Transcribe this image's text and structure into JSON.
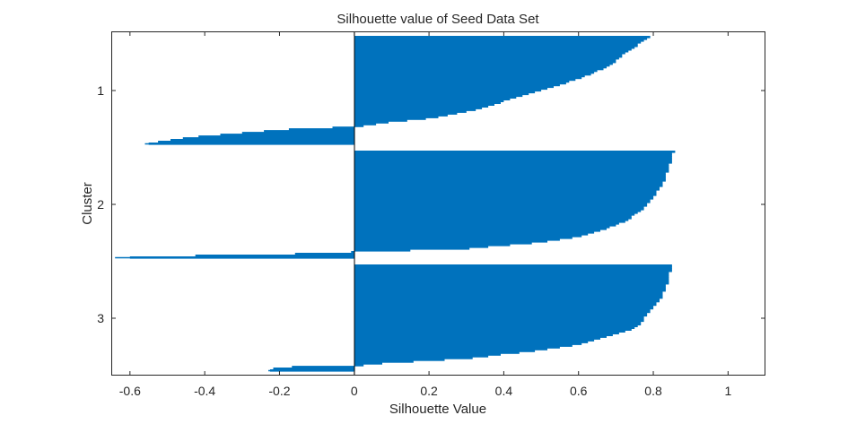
{
  "chart_data": {
    "type": "bar",
    "orientation": "horizontal",
    "title": "Silhouette value of Seed Data Set",
    "xlabel": "Silhouette Value",
    "ylabel": "Cluster",
    "xlim": [
      -0.65,
      1.1
    ],
    "xticks": [
      -0.6,
      -0.4,
      -0.2,
      0,
      0.2,
      0.4,
      0.6,
      0.8,
      1
    ],
    "xtick_labels": [
      "-0.6",
      "-0.4",
      "-0.2",
      "0",
      "0.2",
      "0.4",
      "0.6",
      "0.8",
      "1"
    ],
    "yticks": [
      1,
      2,
      3
    ],
    "ytick_labels": [
      "1",
      "2",
      "3"
    ],
    "grid": false,
    "bar_color": "#0072BD",
    "clusters": [
      {
        "label": "1",
        "max_value": 0.8,
        "min_value": -0.56,
        "profile": [
          [
            0,
            0.8
          ],
          [
            0.03,
            0.78
          ],
          [
            0.08,
            0.76
          ],
          [
            0.14,
            0.73
          ],
          [
            0.2,
            0.71
          ],
          [
            0.26,
            0.69
          ],
          [
            0.31,
            0.66
          ],
          [
            0.38,
            0.61
          ],
          [
            0.45,
            0.55
          ],
          [
            0.5,
            0.5
          ],
          [
            0.55,
            0.45
          ],
          [
            0.6,
            0.4
          ],
          [
            0.66,
            0.35
          ],
          [
            0.7,
            0.3
          ],
          [
            0.73,
            0.25
          ],
          [
            0.76,
            0.2
          ],
          [
            0.79,
            0.1
          ],
          [
            0.84,
            0.0
          ],
          [
            0.85,
            -0.13
          ],
          [
            0.88,
            -0.25
          ],
          [
            0.92,
            -0.4
          ],
          [
            0.97,
            -0.52
          ],
          [
            1.0,
            -0.56
          ]
        ]
      },
      {
        "label": "2",
        "max_value": 0.855,
        "min_value": -0.64,
        "profile": [
          [
            0,
            0.855
          ],
          [
            0.08,
            0.85
          ],
          [
            0.18,
            0.84
          ],
          [
            0.28,
            0.83
          ],
          [
            0.38,
            0.81
          ],
          [
            0.48,
            0.79
          ],
          [
            0.55,
            0.77
          ],
          [
            0.62,
            0.74
          ],
          [
            0.68,
            0.71
          ],
          [
            0.74,
            0.66
          ],
          [
            0.8,
            0.6
          ],
          [
            0.85,
            0.5
          ],
          [
            0.88,
            0.4
          ],
          [
            0.91,
            0.3
          ],
          [
            0.93,
            0.1
          ],
          [
            0.94,
            0.0
          ],
          [
            0.95,
            -0.05
          ],
          [
            0.97,
            -0.3
          ],
          [
            0.98,
            -0.55
          ],
          [
            1.0,
            -0.64
          ]
        ]
      },
      {
        "label": "3",
        "max_value": 0.85,
        "min_value": -0.23,
        "profile": [
          [
            0,
            0.85
          ],
          [
            0.08,
            0.845
          ],
          [
            0.16,
            0.84
          ],
          [
            0.24,
            0.83
          ],
          [
            0.32,
            0.82
          ],
          [
            0.4,
            0.8
          ],
          [
            0.48,
            0.78
          ],
          [
            0.54,
            0.77
          ],
          [
            0.6,
            0.75
          ],
          [
            0.65,
            0.7
          ],
          [
            0.7,
            0.65
          ],
          [
            0.75,
            0.6
          ],
          [
            0.8,
            0.5
          ],
          [
            0.84,
            0.4
          ],
          [
            0.88,
            0.3
          ],
          [
            0.9,
            0.2
          ],
          [
            0.92,
            0.1
          ],
          [
            0.93,
            0.05
          ],
          [
            0.95,
            0.0
          ],
          [
            0.96,
            -0.2
          ],
          [
            0.98,
            -0.22
          ],
          [
            1.0,
            -0.23
          ]
        ]
      }
    ]
  }
}
